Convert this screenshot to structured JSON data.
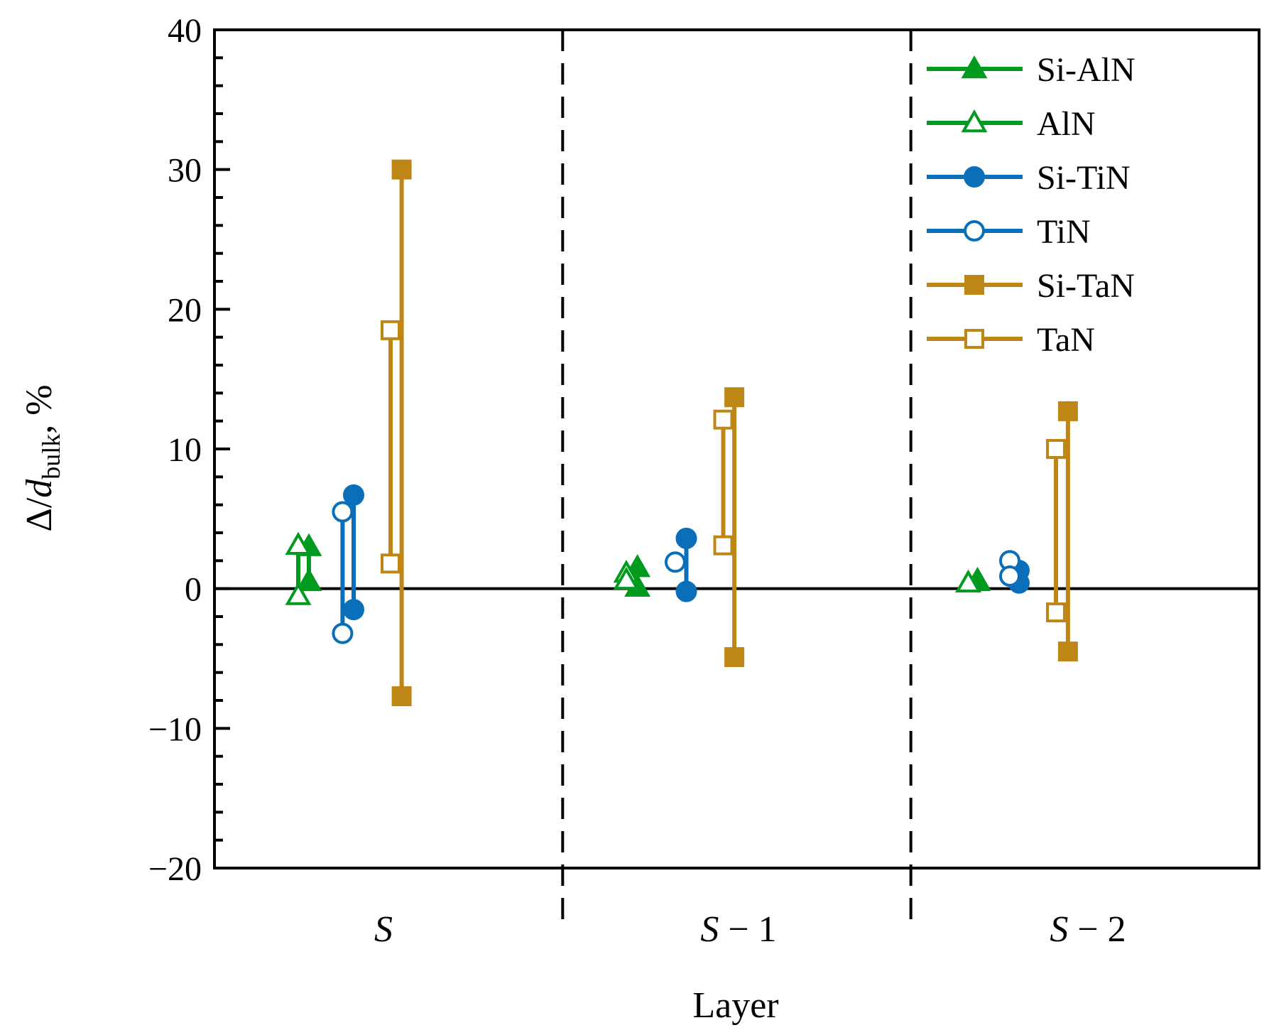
{
  "chart_data": {
    "type": "scatter",
    "title": "",
    "xlabel": "Layer",
    "ylabel": {
      "prefix": "Δ/",
      "var": "d",
      "sub": "bulk",
      "suffix": ", %"
    },
    "ylim": [
      -20,
      40
    ],
    "yticks": [
      -20,
      -10,
      0,
      10,
      20,
      30,
      40
    ],
    "ytick_labels": [
      "−20",
      "−10",
      "0",
      "10",
      "20",
      "30",
      "40"
    ],
    "categories": [
      {
        "var": "S",
        "rest": ""
      },
      {
        "var": "S",
        "rest": " − 1"
      },
      {
        "var": "S",
        "rest": " − 2"
      }
    ],
    "legend_position": "top-right",
    "colors": {
      "green": "#009a1f",
      "blue": "#0a6fb8",
      "gold": "#be8614"
    },
    "series": [
      {
        "name": "Si-AlN",
        "color": "#009a1f",
        "marker": "triangle",
        "filled": true,
        "points": [
          {
            "cat": 0,
            "off": 0.115,
            "values": [
              3.0,
              0.5
            ]
          },
          {
            "cat": 1,
            "off": -0.08,
            "values": [
              1.5,
              0.1
            ]
          },
          {
            "cat": 2,
            "off": -0.15,
            "values": [
              0.6,
              0.5
            ]
          }
        ]
      },
      {
        "name": "AlN",
        "color": "#009a1f",
        "marker": "triangle",
        "filled": false,
        "points": [
          {
            "cat": 0,
            "off": 0.0,
            "values": [
              3.1,
              -0.5
            ]
          },
          {
            "cat": 1,
            "off": -0.2,
            "values": [
              1.1,
              0.6
            ]
          },
          {
            "cat": 2,
            "off": -0.25,
            "values": [
              0.4
            ]
          }
        ]
      },
      {
        "name": "Si-TiN",
        "color": "#0a6fb8",
        "marker": "circle",
        "filled": true,
        "points": [
          {
            "cat": 0,
            "off": 0.6,
            "values": [
              6.7,
              -1.5
            ]
          },
          {
            "cat": 1,
            "off": 0.45,
            "values": [
              3.6,
              -0.2
            ]
          },
          {
            "cat": 2,
            "off": 0.3,
            "values": [
              1.3,
              0.4
            ]
          }
        ]
      },
      {
        "name": "TiN",
        "color": "#0a6fb8",
        "marker": "circle",
        "filled": false,
        "points": [
          {
            "cat": 0,
            "off": 0.48,
            "values": [
              5.5,
              -3.2
            ]
          },
          {
            "cat": 1,
            "off": 0.33,
            "values": [
              1.9
            ]
          },
          {
            "cat": 2,
            "off": 0.2,
            "values": [
              2.0,
              0.9
            ]
          }
        ]
      },
      {
        "name": "Si-TaN",
        "color": "#be8614",
        "marker": "square",
        "filled": true,
        "points": [
          {
            "cat": 0,
            "off": 1.12,
            "values": [
              30.0,
              -7.7
            ]
          },
          {
            "cat": 1,
            "off": 0.97,
            "values": [
              13.7,
              -4.9
            ]
          },
          {
            "cat": 2,
            "off": 0.83,
            "values": [
              12.7,
              -4.5
            ]
          }
        ]
      },
      {
        "name": "TaN",
        "color": "#be8614",
        "marker": "square",
        "filled": false,
        "points": [
          {
            "cat": 0,
            "off": 1.0,
            "values": [
              18.5,
              1.8
            ]
          },
          {
            "cat": 1,
            "off": 0.85,
            "values": [
              12.1,
              3.1
            ]
          },
          {
            "cat": 2,
            "off": 0.7,
            "values": [
              10.0,
              -1.7
            ]
          }
        ]
      }
    ]
  }
}
